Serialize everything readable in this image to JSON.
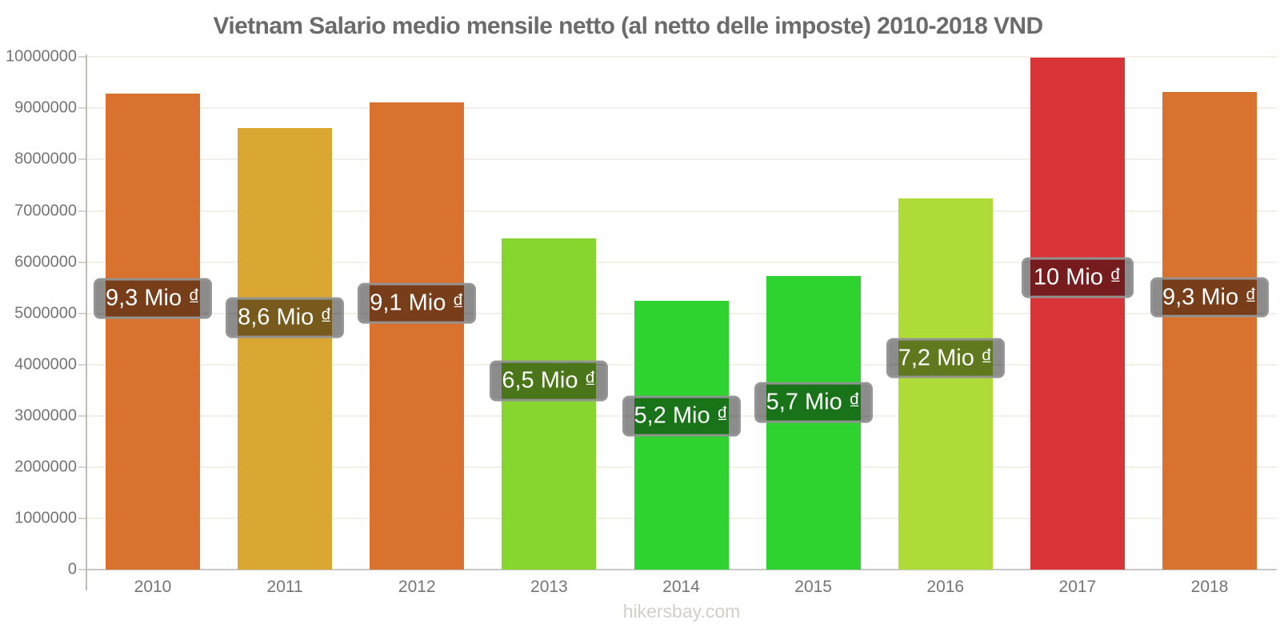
{
  "page": {
    "title": "Vietnam Salario medio mensile netto (al netto delle imposte) 2010-2018 VND",
    "watermark": "hikersbay.com"
  },
  "chart_data": {
    "type": "bar",
    "title": "Vietnam Salario medio mensile netto (al netto delle imposte) 2010-2018 VND",
    "currency": "VND",
    "categories": [
      "2010",
      "2011",
      "2012",
      "2013",
      "2014",
      "2015",
      "2016",
      "2017",
      "2018"
    ],
    "values": [
      9280000,
      8620000,
      9120000,
      6460000,
      5250000,
      5730000,
      7240000,
      9990000,
      9320000
    ],
    "bar_labels": [
      "9,3 Mio ₫",
      "8,6 Mio ₫",
      "9,1 Mio ₫",
      "6,5 Mio ₫",
      "5,2 Mio ₫",
      "5,7 Mio ₫",
      "7,2 Mio ₫",
      "10 Mio ₫",
      "9,3 Mio ₫"
    ],
    "bar_colors": [
      "#d9712f",
      "#dba733",
      "#d9712f",
      "#87d52f",
      "#2fd32f",
      "#2fd32f",
      "#afdb38",
      "#d93438",
      "#d9712f"
    ],
    "xlabel": "",
    "ylabel": "",
    "ylim": [
      0,
      10000000
    ],
    "yticks": [
      0,
      1000000,
      2000000,
      3000000,
      4000000,
      5000000,
      6000000,
      7000000,
      8000000,
      9000000,
      10000000
    ],
    "grid": "horizontal",
    "legend": "none",
    "value_label_style": {
      "text_color": "#ffffff",
      "background": "rgba(0,0,0,0.45)",
      "border_color": "#969696"
    },
    "axis_text_color": "#757575",
    "title_color": "#6b6b6b",
    "watermark_color": "#d2cec8"
  }
}
